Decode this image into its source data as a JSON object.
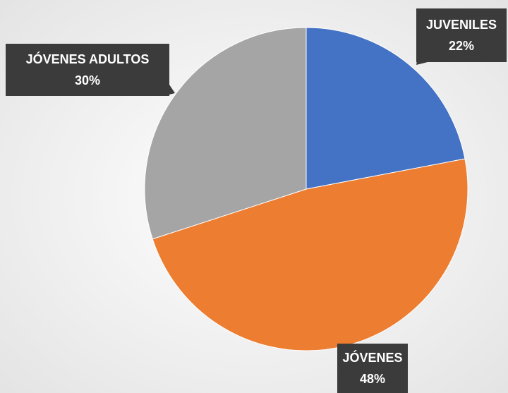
{
  "chart_data": {
    "type": "pie",
    "categories": [
      "JUVENILES",
      "JÓVENES",
      "JÓVENES ADULTOS"
    ],
    "values": [
      22,
      48,
      30
    ],
    "value_labels": [
      "22%",
      "48%",
      "30%"
    ],
    "colors": [
      "#4472c4",
      "#ed7d31",
      "#a5a5a5"
    ]
  }
}
